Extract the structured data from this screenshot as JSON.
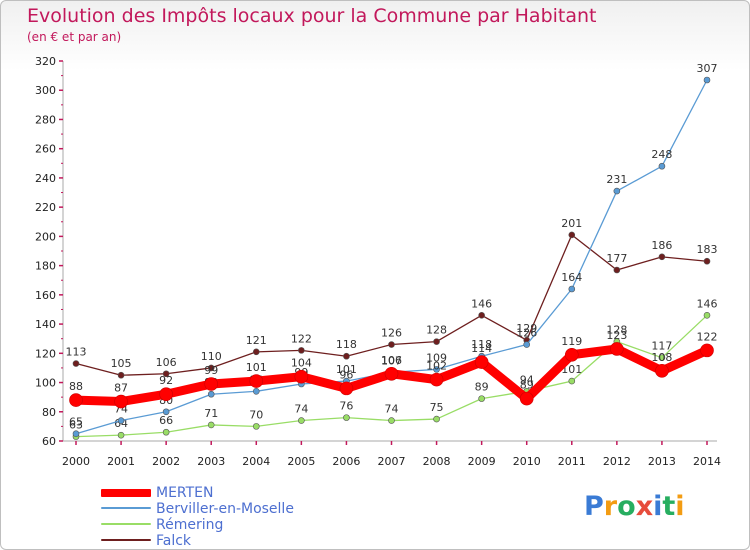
{
  "title": "Evolution des Impôts locaux pour la Commune par Habitant",
  "subtitle": "(en € et par an)",
  "logo": {
    "letters": [
      "P",
      "r",
      "o",
      "x",
      "i",
      "t",
      "i"
    ],
    "colors": [
      "#3a7bd5",
      "#f39c12",
      "#27ae60",
      "#e74c3c",
      "#3a7bd5",
      "#27ae60",
      "#f39c12"
    ]
  },
  "chart_data": {
    "type": "line",
    "title": "Evolution des Impôts locaux pour la Commune par Habitant",
    "subtitle": "(en € et par an)",
    "xlabel": "",
    "ylabel": "",
    "x": [
      2000,
      2001,
      2002,
      2003,
      2004,
      2005,
      2006,
      2007,
      2008,
      2009,
      2010,
      2011,
      2012,
      2013,
      2014
    ],
    "ylim": [
      60,
      320
    ],
    "yticks": [
      60,
      80,
      100,
      120,
      140,
      160,
      180,
      200,
      220,
      240,
      260,
      280,
      300,
      320
    ],
    "grid": false,
    "legend_position": "bottom-left",
    "series": [
      {
        "name": "Falck",
        "color": "#6e1f1f",
        "values": [
          113,
          105,
          106,
          110,
          121,
          122,
          118,
          126,
          128,
          146,
          129,
          201,
          177,
          186,
          183
        ]
      },
      {
        "name": "Rémering",
        "color": "#99dd66",
        "values": [
          63,
          64,
          66,
          71,
          70,
          74,
          76,
          74,
          75,
          89,
          94,
          101,
          128,
          117,
          146
        ]
      },
      {
        "name": "Berviller-en-Moselle",
        "color": "#5a9bd4",
        "values": [
          65,
          74,
          80,
          92,
          94,
          99,
          101,
          107,
          109,
          118,
          126,
          164,
          231,
          248,
          307
        ]
      },
      {
        "name": "MERTEN",
        "color": "#ff0000",
        "values": [
          88,
          87,
          92,
          99,
          101,
          104,
          96,
          106,
          102,
          114,
          89,
          119,
          123,
          108,
          122
        ]
      }
    ]
  },
  "legend": [
    {
      "name": "MERTEN",
      "color": "#ff0000"
    },
    {
      "name": "Berviller-en-Moselle",
      "color": "#5a9bd4"
    },
    {
      "name": "Rémering",
      "color": "#99dd66"
    },
    {
      "name": "Falck",
      "color": "#6e1f1f"
    }
  ]
}
